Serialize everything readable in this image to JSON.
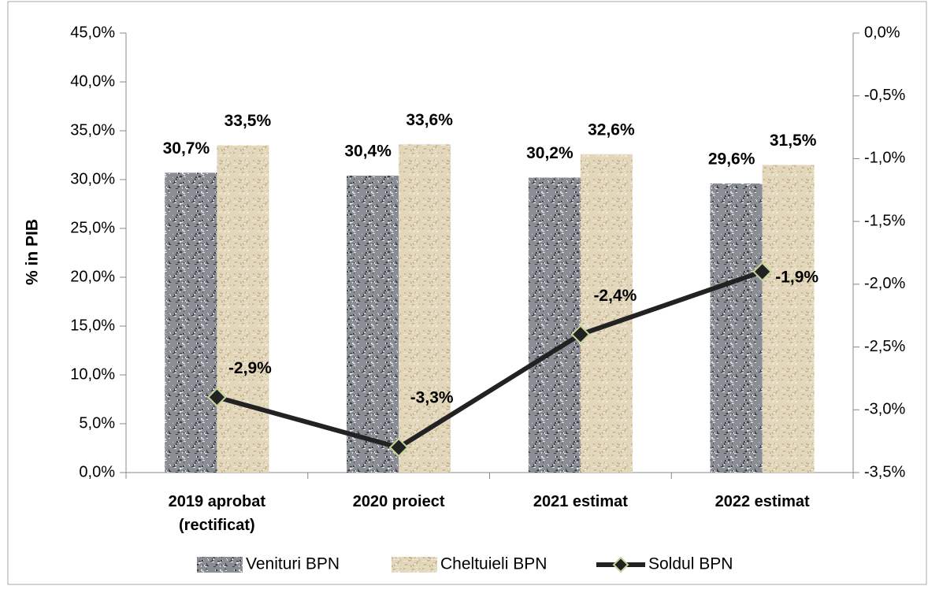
{
  "chart_data": {
    "type": "bar",
    "categories": [
      "2019 aprobat (rectificat)",
      "2020 proiect",
      "2021 estimat",
      "2022 estimat"
    ],
    "ylabel": "% in PIB",
    "ylim": [
      0,
      45
    ],
    "yticks": [
      {
        "value": 0,
        "label": "0,0%"
      },
      {
        "value": 5,
        "label": "5,0%"
      },
      {
        "value": 10,
        "label": "10,0%"
      },
      {
        "value": 15,
        "label": "15,0%"
      },
      {
        "value": 20,
        "label": "20,0%"
      },
      {
        "value": 25,
        "label": "25,0%"
      },
      {
        "value": 30,
        "label": "30,0%"
      },
      {
        "value": 35,
        "label": "35,0%"
      },
      {
        "value": 40,
        "label": "40,0%"
      },
      {
        "value": 45,
        "label": "45,0%"
      }
    ],
    "y2lim": [
      -3.5,
      0
    ],
    "y2ticks": [
      {
        "value": -3.5,
        "label": "-3,5%"
      },
      {
        "value": -3,
        "label": "-3,0%"
      },
      {
        "value": -2.5,
        "label": "-2,5%"
      },
      {
        "value": -2,
        "label": "-2,0%"
      },
      {
        "value": -1.5,
        "label": "-1,5%"
      },
      {
        "value": -1,
        "label": "-1,0%"
      },
      {
        "value": -0.5,
        "label": "-0,5%"
      },
      {
        "value": 0,
        "label": "0,0%"
      }
    ],
    "legend": "bottom",
    "series": [
      {
        "name": "Venituri BPN",
        "type": "bar",
        "color": "#8a8d94",
        "values": [
          30.7,
          30.4,
          30.2,
          29.6
        ],
        "value_labels": [
          "30,7%",
          "30,4%",
          "30,2%",
          "29,6%"
        ]
      },
      {
        "name": "Cheltuieli BPN",
        "type": "bar",
        "color": "#e2d6bb",
        "values": [
          33.5,
          33.6,
          32.6,
          31.5
        ],
        "value_labels": [
          "33,5%",
          "33,6%",
          "32,6%",
          "31,5%"
        ]
      },
      {
        "name": "Soldul BPN",
        "type": "line",
        "axis": "y2",
        "color": "#222222",
        "marker_edge": "#c3d69b",
        "values": [
          -2.9,
          -3.3,
          -2.4,
          -1.9
        ],
        "value_labels": [
          "-2,9%",
          "-3,3%",
          "-2,4%",
          "-1,9%"
        ]
      }
    ]
  }
}
